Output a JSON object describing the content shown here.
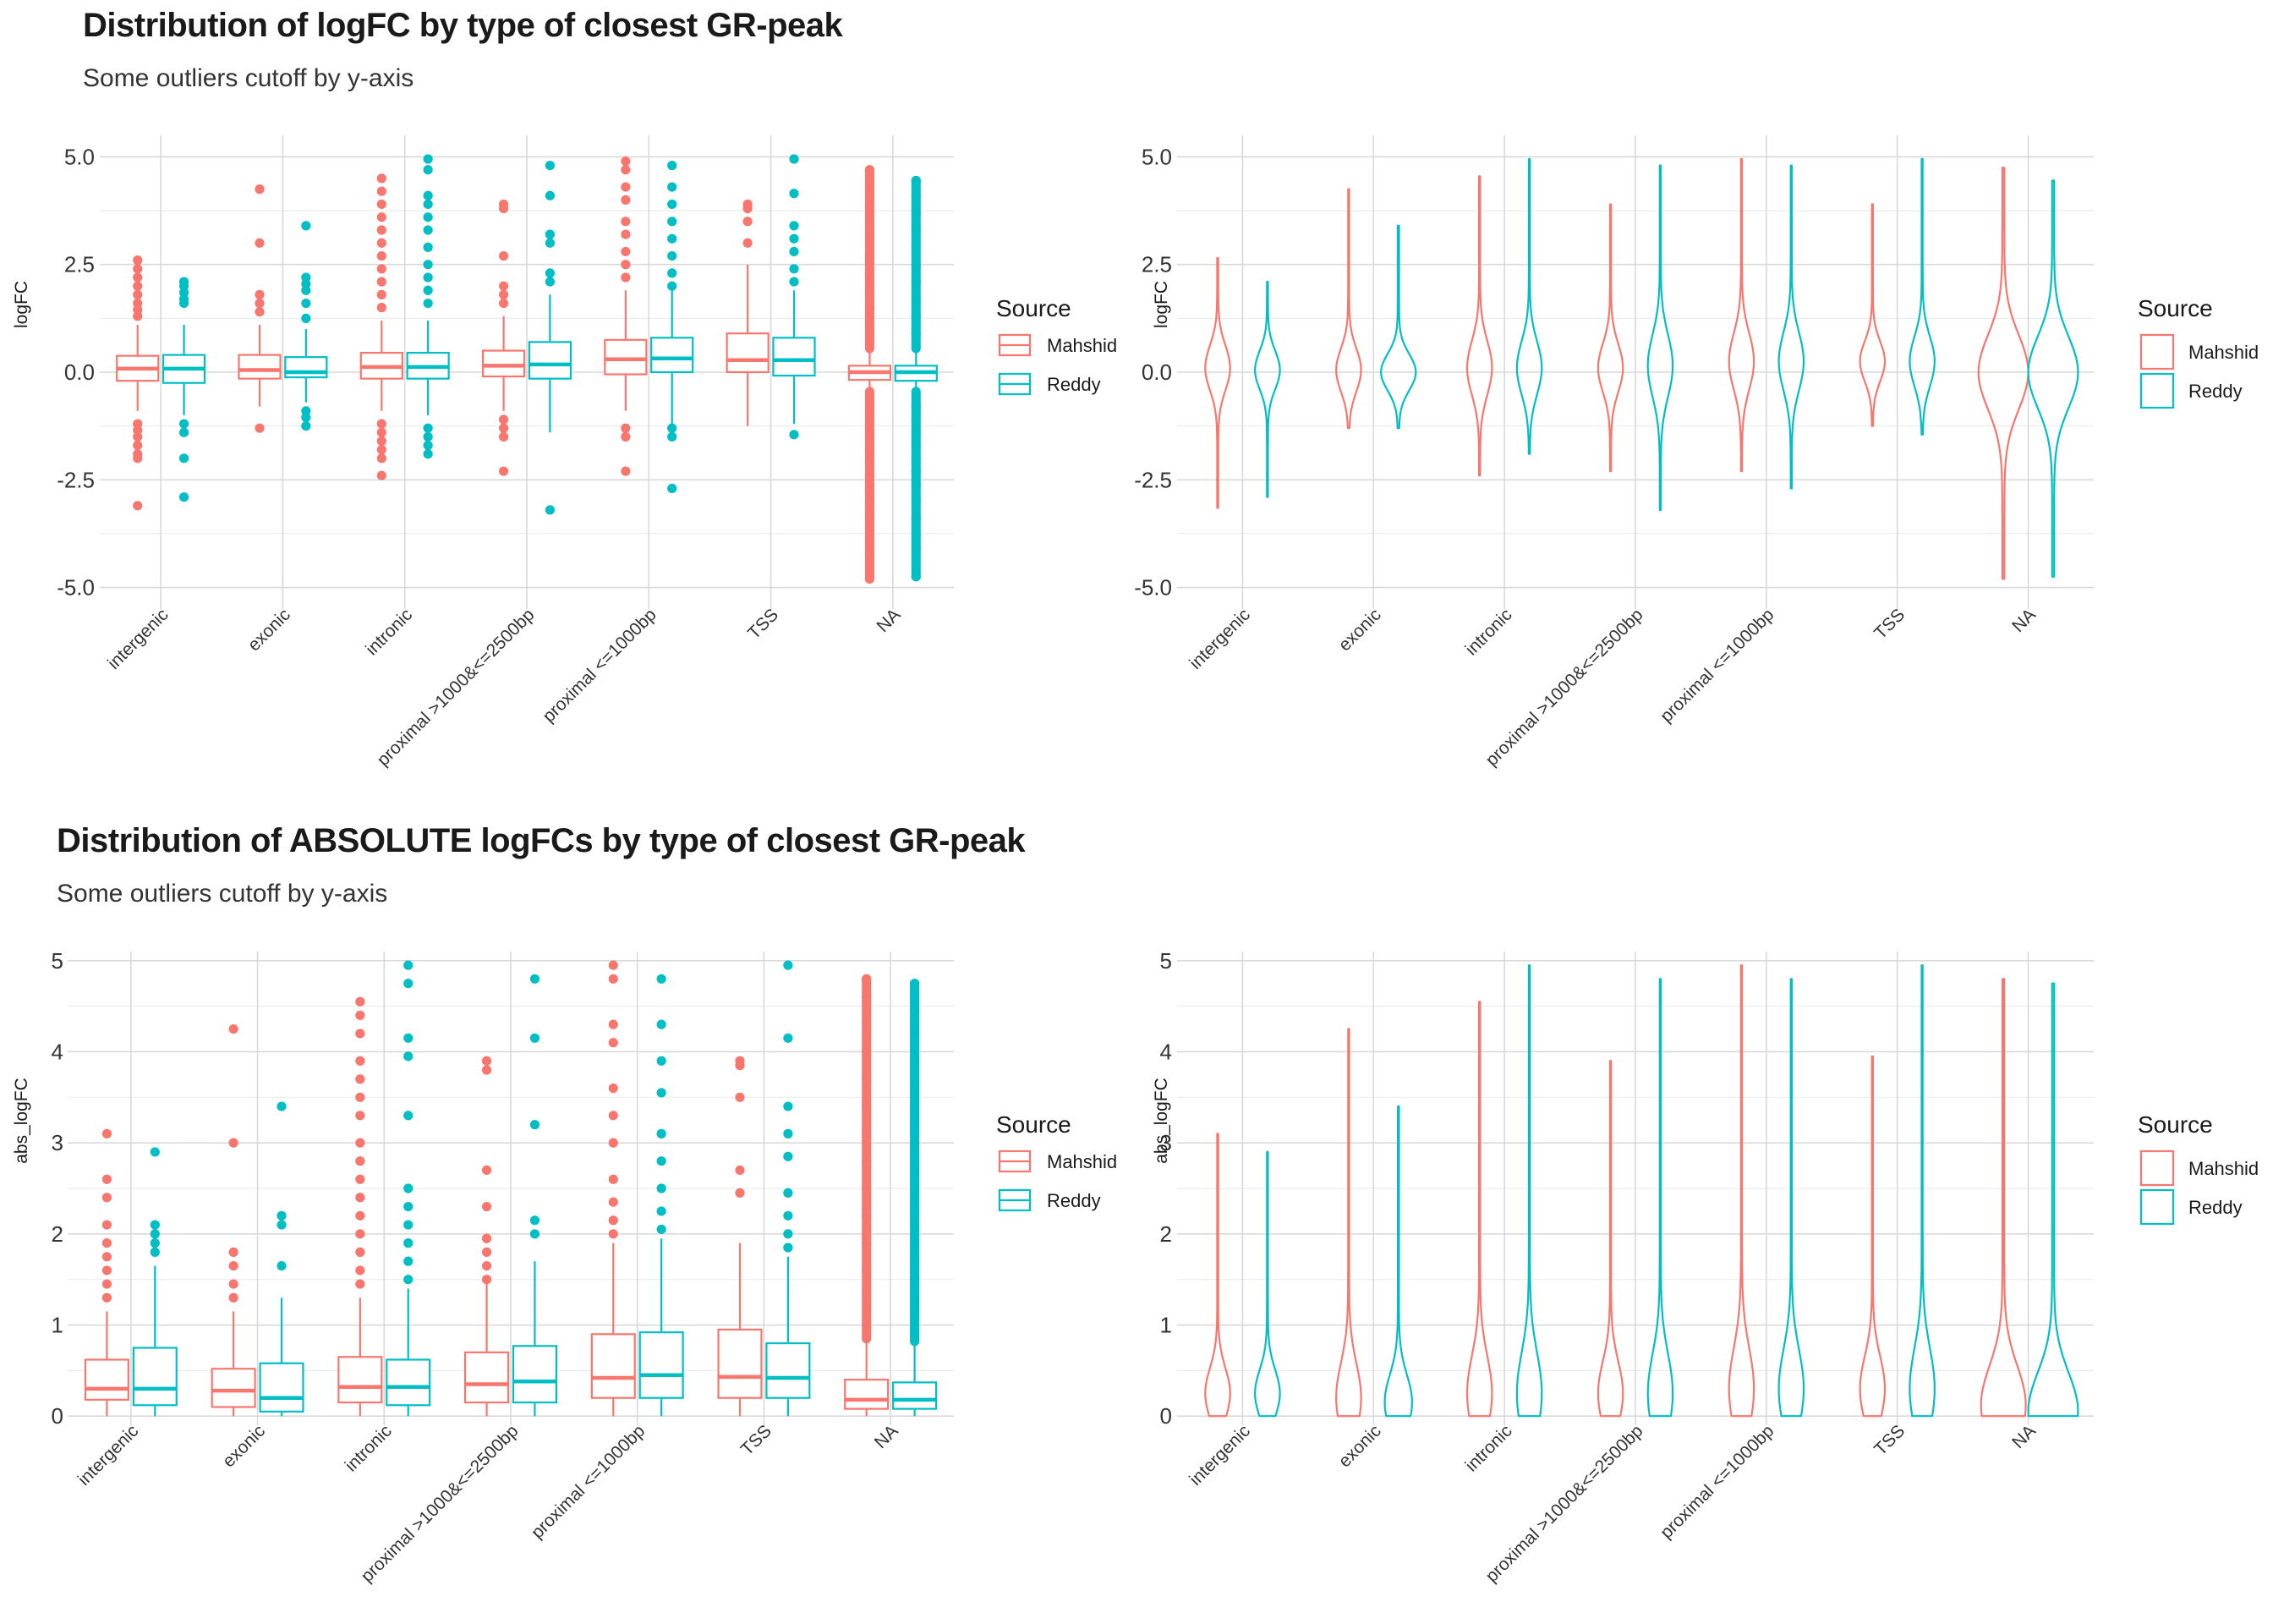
{
  "colors": {
    "Mahshid": "#F8766D",
    "Reddy": "#00BFC4",
    "grid": "#d9d9d9"
  },
  "top": {
    "title": "Distribution of logFC by type of closest GR-peak",
    "subtitle": "Some outliers cutoff by y-axis"
  },
  "bottom": {
    "title": "Distribution of ABSOLUTE logFCs by type of closest GR-peak",
    "subtitle": "Some outliers cutoff by y-axis"
  },
  "chart_data": [
    {
      "id": "logfc-box",
      "type": "box",
      "title": "Distribution of logFC by type of closest GR-peak",
      "subtitle": "Some outliers cutoff by y-axis",
      "ylabel": "logFC",
      "ylim": [
        -5.5,
        5.5
      ],
      "yticks": [
        5.0,
        2.5,
        0.0,
        -2.5,
        -5.0
      ],
      "ytick_labels": [
        "5.0",
        "2.5",
        "0.0",
        "-2.5",
        "-5.0"
      ],
      "categories": [
        "intergenic",
        "exonic",
        "intronic",
        "proximal >1000&<=2500bp",
        "proximal <=1000bp",
        "TSS",
        "NA"
      ],
      "legend": {
        "title": "Source",
        "entries": [
          "Mahshid",
          "Reddy"
        ],
        "position": "right"
      },
      "series": [
        {
          "name": "Mahshid",
          "boxes": [
            {
              "q1": -0.2,
              "median": 0.08,
              "q3": 0.38,
              "lo": -0.9,
              "hi": 1.1,
              "outliers": [
                2.6,
                2.4,
                2.2,
                2.0,
                1.8,
                1.6,
                1.45,
                1.3,
                -1.2,
                -1.35,
                -1.5,
                -1.7,
                -1.9,
                -2.0,
                -3.1
              ]
            },
            {
              "q1": -0.15,
              "median": 0.05,
              "q3": 0.4,
              "lo": -0.8,
              "hi": 1.1,
              "outliers": [
                4.25,
                3.0,
                1.8,
                1.6,
                1.4,
                -1.3
              ]
            },
            {
              "q1": -0.15,
              "median": 0.12,
              "q3": 0.45,
              "lo": -0.9,
              "hi": 1.2,
              "outliers": [
                4.5,
                4.2,
                3.9,
                3.6,
                3.3,
                3.0,
                2.7,
                2.4,
                2.1,
                1.8,
                1.5,
                -1.2,
                -1.4,
                -1.6,
                -1.8,
                -2.0,
                -2.4
              ]
            },
            {
              "q1": -0.1,
              "median": 0.15,
              "q3": 0.5,
              "lo": -0.9,
              "hi": 1.3,
              "outliers": [
                3.9,
                3.8,
                2.7,
                2.0,
                1.8,
                1.6,
                -1.1,
                -1.3,
                -1.5,
                -2.3
              ]
            },
            {
              "q1": -0.05,
              "median": 0.3,
              "q3": 0.75,
              "lo": -0.9,
              "hi": 1.9,
              "outliers": [
                4.9,
                4.7,
                4.3,
                4.0,
                3.5,
                3.2,
                2.8,
                2.5,
                2.2,
                -1.3,
                -1.5,
                -2.3
              ]
            },
            {
              "q1": 0.0,
              "median": 0.28,
              "q3": 0.9,
              "lo": -1.25,
              "hi": 2.5,
              "outliers": [
                3.9,
                3.8,
                3.5,
                3.0
              ]
            },
            {
              "q1": -0.18,
              "median": 0.0,
              "q3": 0.15,
              "lo": -0.45,
              "hi": 0.55,
              "outliers": [
                4.7,
                4.3,
                3.9,
                3.5,
                3.1,
                2.7,
                2.3,
                1.9,
                1.5,
                1.2,
                0.9,
                -0.9,
                -1.2,
                -1.5,
                -1.8,
                -2.1,
                -2.4,
                -2.7,
                -3.0,
                -3.3,
                -3.6,
                -3.9,
                -4.2,
                -4.5,
                -4.8
              ]
            }
          ]
        },
        {
          "name": "Reddy",
          "boxes": [
            {
              "q1": -0.25,
              "median": 0.08,
              "q3": 0.4,
              "lo": -1.0,
              "hi": 1.1,
              "outliers": [
                2.1,
                2.0,
                1.85,
                1.7,
                1.6,
                -1.2,
                -1.4,
                -2.0,
                -2.9
              ]
            },
            {
              "q1": -0.12,
              "median": 0.0,
              "q3": 0.35,
              "lo": -0.7,
              "hi": 1.0,
              "outliers": [
                3.4,
                2.2,
                2.05,
                1.9,
                1.6,
                1.25,
                -0.9,
                -1.05,
                -1.25
              ]
            },
            {
              "q1": -0.15,
              "median": 0.12,
              "q3": 0.45,
              "lo": -1.0,
              "hi": 1.2,
              "outliers": [
                4.95,
                4.7,
                4.1,
                3.9,
                3.6,
                3.3,
                2.9,
                2.5,
                2.2,
                1.9,
                1.6,
                -1.3,
                -1.5,
                -1.7,
                -1.9
              ]
            },
            {
              "q1": -0.15,
              "median": 0.18,
              "q3": 0.7,
              "lo": -1.4,
              "hi": 1.8,
              "outliers": [
                4.8,
                4.1,
                3.2,
                3.0,
                2.3,
                2.1,
                -3.2
              ]
            },
            {
              "q1": 0.0,
              "median": 0.32,
              "q3": 0.8,
              "lo": -1.2,
              "hi": 1.9,
              "outliers": [
                4.8,
                4.3,
                3.9,
                3.5,
                3.1,
                2.7,
                2.3,
                2.0,
                -1.3,
                -1.5,
                -2.7
              ]
            },
            {
              "q1": -0.08,
              "median": 0.28,
              "q3": 0.8,
              "lo": -1.2,
              "hi": 1.9,
              "outliers": [
                4.95,
                4.15,
                3.4,
                3.1,
                2.8,
                2.4,
                2.1,
                -1.45
              ]
            },
            {
              "q1": -0.2,
              "median": 0.0,
              "q3": 0.15,
              "lo": -0.45,
              "hi": 0.55,
              "outliers": [
                4.45,
                4.1,
                3.7,
                3.3,
                2.9,
                2.5,
                2.1,
                1.7,
                1.3,
                0.9,
                -0.8,
                -1.1,
                -1.4,
                -1.7,
                -2.0,
                -2.3,
                -2.6,
                -3.0,
                -3.4,
                -3.8,
                -4.1,
                -4.75
              ]
            }
          ]
        }
      ]
    },
    {
      "id": "logfc-violin",
      "type": "violin",
      "ylabel": "logFC",
      "ylim": [
        -5.5,
        5.5
      ],
      "yticks": [
        5.0,
        2.5,
        0.0,
        -2.5,
        -5.0
      ],
      "ytick_labels": [
        "5.0",
        "2.5",
        "0.0",
        "-2.5",
        "-5.0"
      ],
      "categories": [
        "intergenic",
        "exonic",
        "intronic",
        "proximal >1000&<=2500bp",
        "proximal <=1000bp",
        "TSS",
        "NA"
      ],
      "legend": {
        "title": "Source",
        "entries": [
          "Mahshid",
          "Reddy"
        ],
        "position": "right"
      },
      "series": [
        {
          "name": "Mahshid",
          "violins": [
            {
              "min": -3.15,
              "max": 2.65,
              "mode": 0.1,
              "width": 0.5
            },
            {
              "min": -1.3,
              "max": 4.25,
              "mode": 0.05,
              "width": 0.5
            },
            {
              "min": -2.4,
              "max": 4.55,
              "mode": 0.1,
              "width": 0.5
            },
            {
              "min": -2.3,
              "max": 3.9,
              "mode": 0.1,
              "width": 0.5
            },
            {
              "min": -2.3,
              "max": 4.95,
              "mode": 0.25,
              "width": 0.5
            },
            {
              "min": -1.25,
              "max": 3.9,
              "mode": 0.25,
              "width": 0.5
            },
            {
              "min": -4.8,
              "max": 4.75,
              "mode": 0.0,
              "width": 1.0
            }
          ]
        },
        {
          "name": "Reddy",
          "violins": [
            {
              "min": -2.9,
              "max": 2.1,
              "mode": 0.05,
              "width": 0.5
            },
            {
              "min": -1.3,
              "max": 3.4,
              "mode": 0.0,
              "width": 0.7
            },
            {
              "min": -1.9,
              "max": 4.95,
              "mode": 0.1,
              "width": 0.5
            },
            {
              "min": -3.2,
              "max": 4.8,
              "mode": 0.15,
              "width": 0.5
            },
            {
              "min": -2.7,
              "max": 4.8,
              "mode": 0.25,
              "width": 0.5
            },
            {
              "min": -1.45,
              "max": 4.95,
              "mode": 0.25,
              "width": 0.5
            },
            {
              "min": -4.75,
              "max": 4.45,
              "mode": 0.0,
              "width": 1.0
            }
          ]
        }
      ]
    },
    {
      "id": "abs-box",
      "type": "box",
      "title": "Distribution of ABSOLUTE logFCs by type of closest GR-peak",
      "subtitle": "Some outliers cutoff by y-axis",
      "ylabel": "abs_logFC",
      "ylim": [
        -0.1,
        5.1
      ],
      "yticks": [
        5,
        4,
        3,
        2,
        1,
        0
      ],
      "ytick_labels": [
        "5",
        "4",
        "3",
        "2",
        "1",
        "0"
      ],
      "categories": [
        "intergenic",
        "exonic",
        "intronic",
        "proximal >1000&<=2500bp",
        "proximal <=1000bp",
        "TSS",
        "NA"
      ],
      "legend": {
        "title": "Source",
        "entries": [
          "Mahshid",
          "Reddy"
        ],
        "position": "right"
      },
      "series": [
        {
          "name": "Mahshid",
          "boxes": [
            {
              "q1": 0.18,
              "median": 0.3,
              "q3": 0.62,
              "lo": 0.0,
              "hi": 1.15,
              "outliers": [
                3.1,
                2.6,
                2.4,
                2.1,
                1.9,
                1.75,
                1.6,
                1.45,
                1.3
              ]
            },
            {
              "q1": 0.1,
              "median": 0.28,
              "q3": 0.52,
              "lo": 0.0,
              "hi": 1.15,
              "outliers": [
                4.25,
                3.0,
                1.8,
                1.65,
                1.45,
                1.3
              ]
            },
            {
              "q1": 0.15,
              "median": 0.32,
              "q3": 0.65,
              "lo": 0.0,
              "hi": 1.3,
              "outliers": [
                4.55,
                4.4,
                4.2,
                3.9,
                3.7,
                3.5,
                3.3,
                3.0,
                2.8,
                2.6,
                2.4,
                2.2,
                2.0,
                1.8,
                1.6,
                1.45
              ]
            },
            {
              "q1": 0.15,
              "median": 0.35,
              "q3": 0.7,
              "lo": 0.0,
              "hi": 1.5,
              "outliers": [
                3.9,
                3.8,
                2.7,
                2.3,
                1.95,
                1.8,
                1.65,
                1.5
              ]
            },
            {
              "q1": 0.2,
              "median": 0.42,
              "q3": 0.9,
              "lo": 0.0,
              "hi": 1.9,
              "outliers": [
                4.95,
                4.8,
                4.3,
                4.1,
                3.6,
                3.3,
                3.0,
                2.6,
                2.35,
                2.15,
                2.0
              ]
            },
            {
              "q1": 0.2,
              "median": 0.43,
              "q3": 0.95,
              "lo": 0.0,
              "hi": 1.9,
              "outliers": [
                3.9,
                3.85,
                3.5,
                2.7,
                2.45
              ]
            },
            {
              "q1": 0.08,
              "median": 0.18,
              "q3": 0.4,
              "lo": 0.0,
              "hi": 0.85,
              "outliers": [
                4.8,
                4.6,
                4.3,
                4.0,
                3.7,
                3.4,
                3.1,
                2.8,
                2.5,
                2.2,
                1.9,
                1.6,
                1.3,
                1.0
              ]
            }
          ]
        },
        {
          "name": "Reddy",
          "boxes": [
            {
              "q1": 0.12,
              "median": 0.3,
              "q3": 0.75,
              "lo": 0.0,
              "hi": 1.65,
              "outliers": [
                2.9,
                2.1,
                2.0,
                1.9,
                1.8
              ]
            },
            {
              "q1": 0.05,
              "median": 0.2,
              "q3": 0.58,
              "lo": 0.0,
              "hi": 1.3,
              "outliers": [
                3.4,
                2.2,
                2.1,
                1.65
              ]
            },
            {
              "q1": 0.12,
              "median": 0.32,
              "q3": 0.62,
              "lo": 0.0,
              "hi": 1.4,
              "outliers": [
                4.95,
                4.75,
                4.15,
                3.95,
                3.3,
                2.5,
                2.3,
                2.1,
                1.9,
                1.7,
                1.5
              ]
            },
            {
              "q1": 0.15,
              "median": 0.38,
              "q3": 0.77,
              "lo": 0.0,
              "hi": 1.7,
              "outliers": [
                4.8,
                4.15,
                3.2,
                2.15,
                2.0
              ]
            },
            {
              "q1": 0.2,
              "median": 0.45,
              "q3": 0.92,
              "lo": 0.0,
              "hi": 1.95,
              "outliers": [
                4.8,
                4.3,
                3.9,
                3.55,
                3.1,
                2.8,
                2.5,
                2.25,
                2.05
              ]
            },
            {
              "q1": 0.2,
              "median": 0.42,
              "q3": 0.8,
              "lo": 0.0,
              "hi": 1.75,
              "outliers": [
                4.95,
                4.15,
                3.4,
                3.1,
                2.85,
                2.45,
                2.2,
                2.0,
                1.85
              ]
            },
            {
              "q1": 0.08,
              "median": 0.18,
              "q3": 0.37,
              "lo": 0.0,
              "hi": 0.82,
              "outliers": [
                4.75,
                4.45,
                4.2,
                3.9,
                3.6,
                3.3,
                3.0,
                2.7,
                2.4,
                2.1,
                1.8,
                1.5,
                1.2,
                0.9
              ]
            }
          ]
        }
      ]
    },
    {
      "id": "abs-violin",
      "type": "violin",
      "ylabel": "abs_logFC",
      "ylim": [
        -0.1,
        5.1
      ],
      "yticks": [
        5,
        4,
        3,
        2,
        1,
        0
      ],
      "ytick_labels": [
        "5",
        "4",
        "3",
        "2",
        "1",
        "0"
      ],
      "categories": [
        "intergenic",
        "exonic",
        "intronic",
        "proximal >1000&<=2500bp",
        "proximal <=1000bp",
        "TSS",
        "NA"
      ],
      "legend": {
        "title": "Source",
        "entries": [
          "Mahshid",
          "Reddy"
        ],
        "position": "right"
      },
      "series": [
        {
          "name": "Mahshid",
          "violins": [
            {
              "min": 0.0,
              "max": 3.1,
              "mode": 0.25,
              "width": 0.5
            },
            {
              "min": 0.0,
              "max": 4.25,
              "mode": 0.2,
              "width": 0.5
            },
            {
              "min": 0.0,
              "max": 4.55,
              "mode": 0.25,
              "width": 0.5
            },
            {
              "min": 0.0,
              "max": 3.9,
              "mode": 0.25,
              "width": 0.5
            },
            {
              "min": 0.0,
              "max": 4.95,
              "mode": 0.3,
              "width": 0.5
            },
            {
              "min": 0.0,
              "max": 3.95,
              "mode": 0.3,
              "width": 0.5
            },
            {
              "min": 0.0,
              "max": 4.8,
              "mode": 0.12,
              "width": 0.9
            }
          ]
        },
        {
          "name": "Reddy",
          "violins": [
            {
              "min": 0.0,
              "max": 2.9,
              "mode": 0.25,
              "width": 0.5
            },
            {
              "min": 0.0,
              "max": 3.4,
              "mode": 0.15,
              "width": 0.55
            },
            {
              "min": 0.0,
              "max": 4.95,
              "mode": 0.25,
              "width": 0.5
            },
            {
              "min": 0.0,
              "max": 4.8,
              "mode": 0.25,
              "width": 0.5
            },
            {
              "min": 0.0,
              "max": 4.8,
              "mode": 0.3,
              "width": 0.5
            },
            {
              "min": 0.0,
              "max": 4.95,
              "mode": 0.3,
              "width": 0.5
            },
            {
              "min": 0.0,
              "max": 4.75,
              "mode": 0.05,
              "width": 1.0
            }
          ]
        }
      ]
    }
  ]
}
